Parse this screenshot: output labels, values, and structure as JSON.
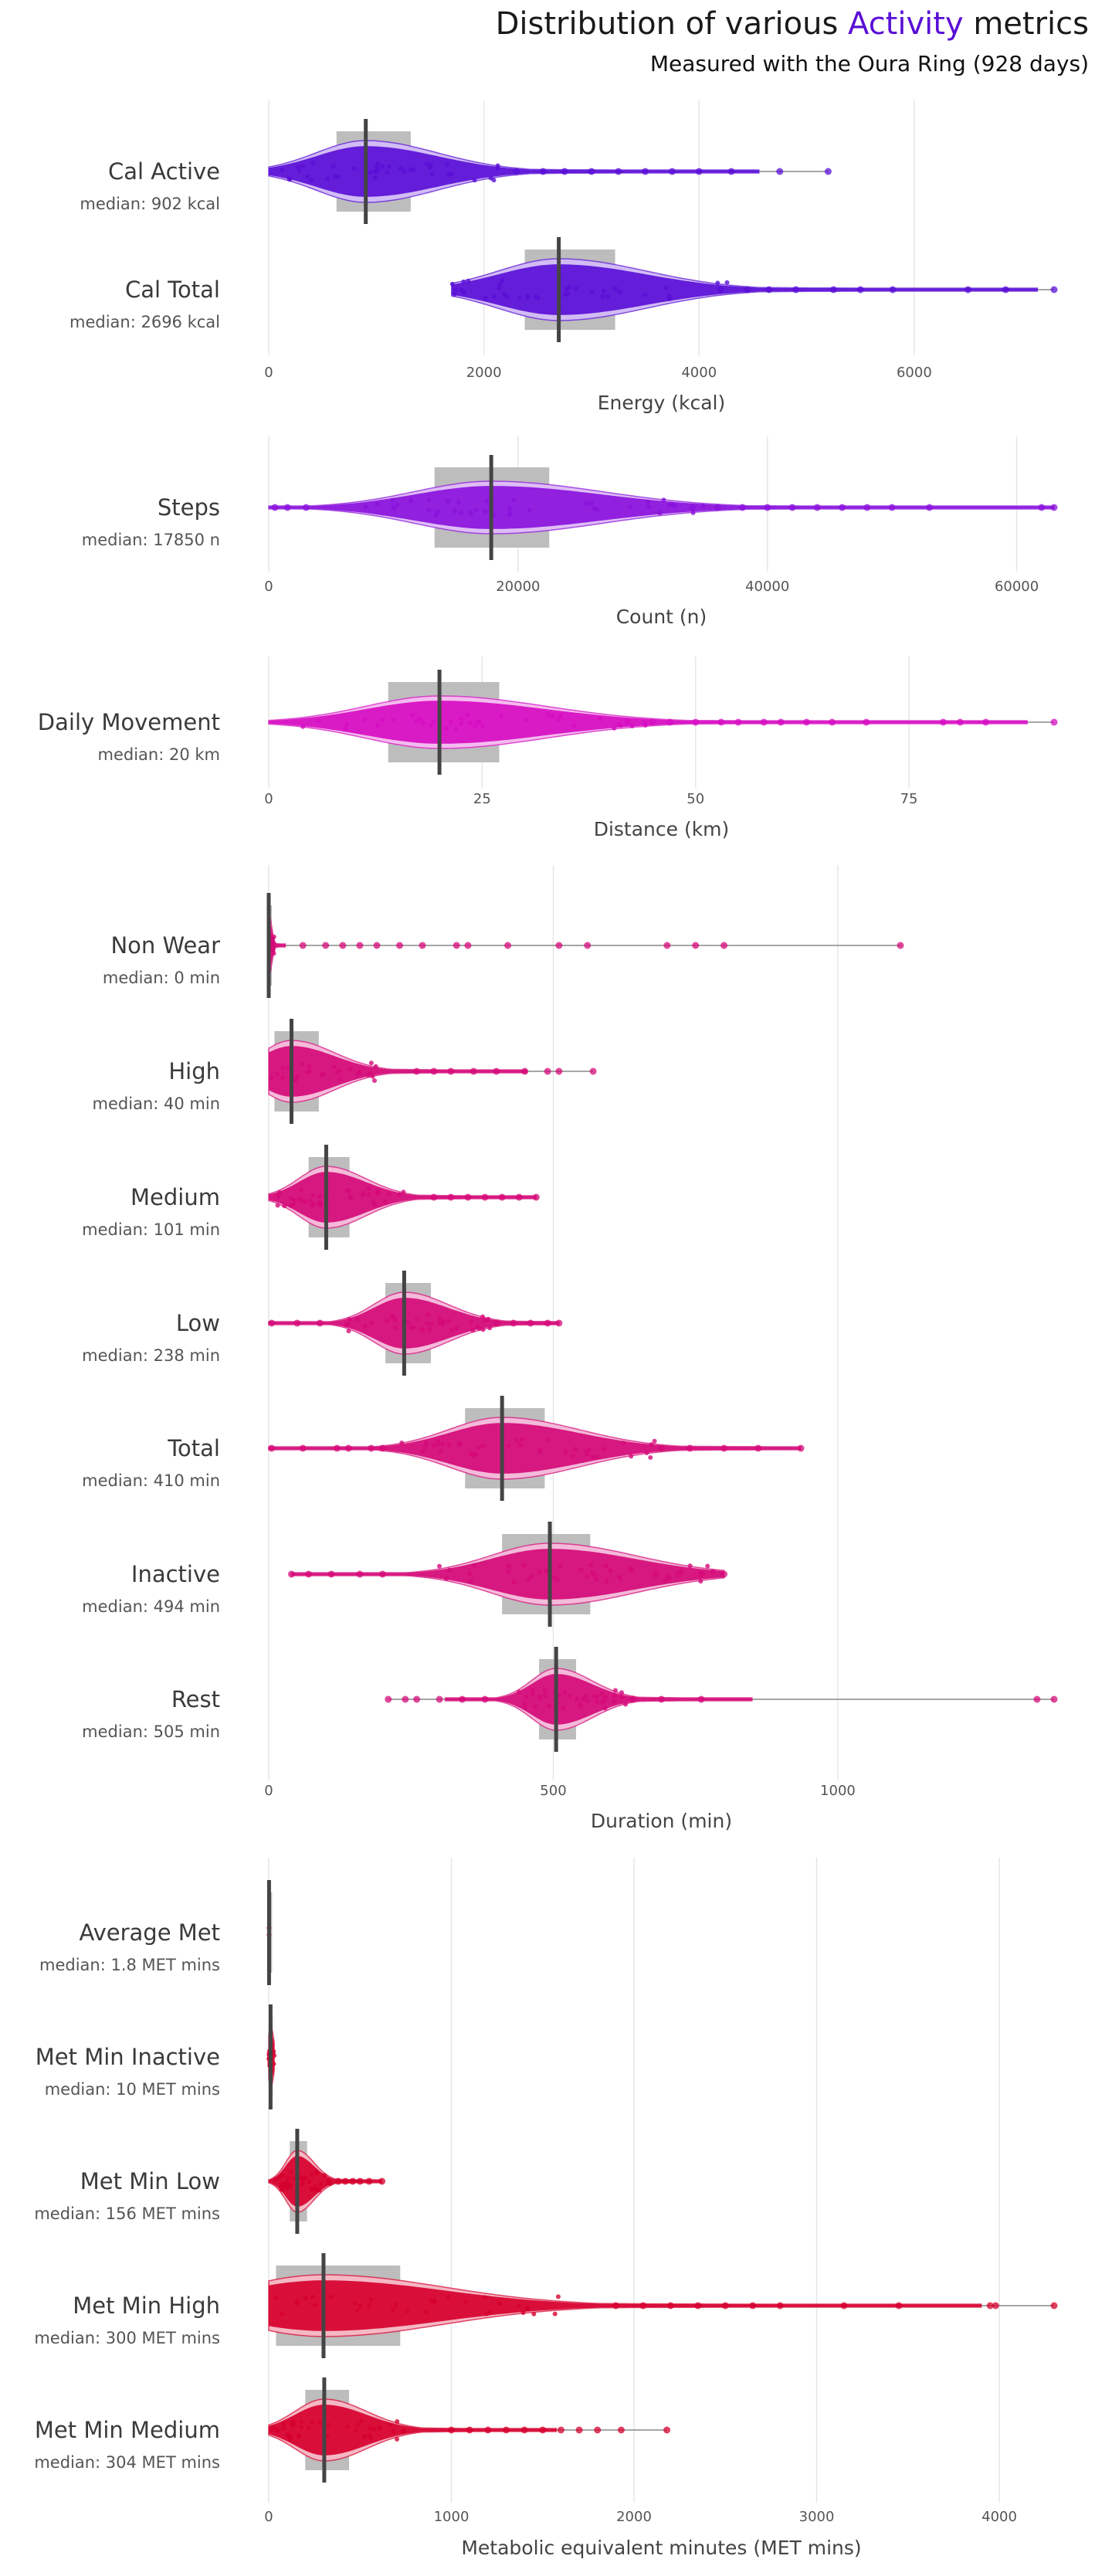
{
  "title": {
    "prefix": "Distribution of various ",
    "accent": "Activity",
    "suffix": " metrics"
  },
  "subtitle": "Measured with the Oura Ring (928 days)",
  "colors": {
    "accent": "#5a0fd6",
    "energy": "#5a0fd6",
    "count": "#8a12dc",
    "distance": "#d60dc2",
    "duration": "#d50a78",
    "met": "#d6002e"
  },
  "chart_data": [
    {
      "type": "violin",
      "color": "#5a0fd6",
      "xlabel": "Energy (kcal)",
      "xlim": [
        0,
        7300
      ],
      "ticks": [
        0,
        2000,
        4000,
        6000
      ],
      "tick_labels": [
        "0",
        "2000",
        "4000",
        "6000"
      ],
      "grid": true,
      "series": [
        {
          "name": "Cal Active",
          "median_label": "median: 902 kcal",
          "median": 902,
          "q1": 630,
          "q3": 1320,
          "min": 0,
          "max": 5200,
          "outliers": [
            2300,
            2550,
            2750,
            3000,
            3250,
            3500,
            3750,
            4000,
            4300,
            4750,
            5200
          ]
        },
        {
          "name": "Cal Total",
          "median_label": "median: 2696 kcal",
          "median": 2696,
          "q1": 2380,
          "q3": 3220,
          "min": 1700,
          "max": 7300,
          "outliers": [
            4200,
            4450,
            4650,
            4900,
            5250,
            5500,
            5800,
            6500,
            6850,
            7300
          ]
        }
      ]
    },
    {
      "type": "violin",
      "color": "#8a12dc",
      "xlabel": "Count (n)",
      "xlim": [
        0,
        63000
      ],
      "ticks": [
        0,
        20000,
        40000,
        60000
      ],
      "tick_labels": [
        "0",
        "20000",
        "40000",
        "60000"
      ],
      "grid": true,
      "series": [
        {
          "name": "Steps",
          "median_label": "median: 17850 n",
          "median": 17850,
          "q1": 13300,
          "q3": 22500,
          "min": 0,
          "max": 63000,
          "outliers": [
            500,
            1500,
            3000,
            34000,
            36000,
            38000,
            40000,
            42000,
            44000,
            46000,
            48000,
            50000,
            53000,
            62000,
            63000
          ]
        }
      ]
    },
    {
      "type": "violin",
      "color": "#d60dc2",
      "xlabel": "Distance (km)",
      "xlim": [
        0,
        92
      ],
      "ticks": [
        0,
        25,
        50,
        75
      ],
      "tick_labels": [
        "0",
        "25",
        "50",
        "75"
      ],
      "grid": true,
      "series": [
        {
          "name": "Daily Movement",
          "median_label": "median: 20 km",
          "median": 20,
          "q1": 14,
          "q3": 27,
          "min": 0,
          "max": 92,
          "outliers": [
            42,
            45,
            47,
            50,
            53,
            55,
            58,
            60,
            63,
            66,
            70,
            79,
            81,
            84,
            92
          ]
        }
      ]
    },
    {
      "type": "violin",
      "color": "#d50a78",
      "xlabel": "Duration (min)",
      "xlim": [
        0,
        1380
      ],
      "ticks": [
        0,
        500,
        1000
      ],
      "tick_labels": [
        "0",
        "500",
        "1000"
      ],
      "grid": true,
      "series": [
        {
          "name": "Non Wear",
          "median_label": "median: 0 min",
          "median": 0,
          "q1": 0,
          "q3": 0,
          "min": 0,
          "max": 1110,
          "outliers": [
            60,
            100,
            130,
            160,
            190,
            230,
            270,
            330,
            350,
            420,
            510,
            560,
            700,
            750,
            800,
            1110
          ]
        },
        {
          "name": "High",
          "median_label": "median: 40 min",
          "median": 40,
          "q1": 10,
          "q3": 88,
          "min": 0,
          "max": 570,
          "outliers": [
            260,
            290,
            320,
            360,
            400,
            450,
            490,
            510,
            570
          ]
        },
        {
          "name": "Medium",
          "median_label": "median: 101 min",
          "median": 101,
          "q1": 70,
          "q3": 142,
          "min": 0,
          "max": 470,
          "outliers": [
            290,
            320,
            350,
            380,
            410,
            440,
            470
          ]
        },
        {
          "name": "Low",
          "median_label": "median: 238 min",
          "median": 238,
          "q1": 205,
          "q3": 285,
          "min": 0,
          "max": 510,
          "outliers": [
            5,
            50,
            90,
            400,
            430,
            460,
            490,
            510
          ]
        },
        {
          "name": "Total",
          "median_label": "median: 410 min",
          "median": 410,
          "q1": 345,
          "q3": 485,
          "min": 0,
          "max": 935,
          "outliers": [
            5,
            60,
            120,
            140,
            180,
            200,
            690,
            740,
            800,
            860,
            935
          ]
        },
        {
          "name": "Inactive",
          "median_label": "median: 494 min",
          "median": 494,
          "q1": 410,
          "q3": 565,
          "min": 40,
          "max": 800,
          "outliers": [
            40,
            70,
            110,
            160,
            200,
            680,
            720,
            760,
            800
          ]
        },
        {
          "name": "Rest",
          "median_label": "median: 505 min",
          "median": 505,
          "q1": 475,
          "q3": 540,
          "min": 210,
          "max": 1380,
          "outliers": [
            210,
            240,
            260,
            300,
            340,
            380,
            640,
            690,
            760,
            1350,
            1380
          ]
        }
      ]
    },
    {
      "type": "violin",
      "color": "#d6002e",
      "xlabel": "Metabolic equivalent minutes (MET mins)",
      "xlim": [
        0,
        4300
      ],
      "ticks": [
        0,
        1000,
        2000,
        3000,
        4000
      ],
      "tick_labels": [
        "0",
        "1000",
        "2000",
        "3000",
        "4000"
      ],
      "grid": true,
      "series": [
        {
          "name": "Average Met",
          "median_label": "median: 1.8 MET mins",
          "median": 1.8,
          "q1": 1.6,
          "q3": 2.0,
          "min": 0,
          "max": 3,
          "outliers": []
        },
        {
          "name": "Met Min Inactive",
          "median_label": "median: 10 MET mins",
          "median": 10,
          "q1": 5,
          "q3": 14,
          "min": 0,
          "max": 30,
          "outliers": []
        },
        {
          "name": "Met Min Low",
          "median_label": "median: 156 MET mins",
          "median": 156,
          "q1": 115,
          "q3": 210,
          "min": 0,
          "max": 620,
          "outliers": [
            380,
            420,
            460,
            500,
            550,
            620
          ]
        },
        {
          "name": "Met Min High",
          "median_label": "median: 300 MET mins",
          "median": 300,
          "q1": 40,
          "q3": 720,
          "min": 0,
          "max": 4300,
          "outliers": [
            1900,
            2050,
            2200,
            2350,
            2500,
            2650,
            2800,
            3150,
            3450,
            3950,
            3980,
            4300
          ]
        },
        {
          "name": "Met Min Medium",
          "median_label": "median: 304 MET mins",
          "median": 304,
          "q1": 200,
          "q3": 440,
          "min": 0,
          "max": 2180,
          "outliers": [
            1000,
            1100,
            1200,
            1300,
            1400,
            1500,
            1600,
            1700,
            1800,
            1930,
            2180
          ]
        }
      ]
    }
  ]
}
